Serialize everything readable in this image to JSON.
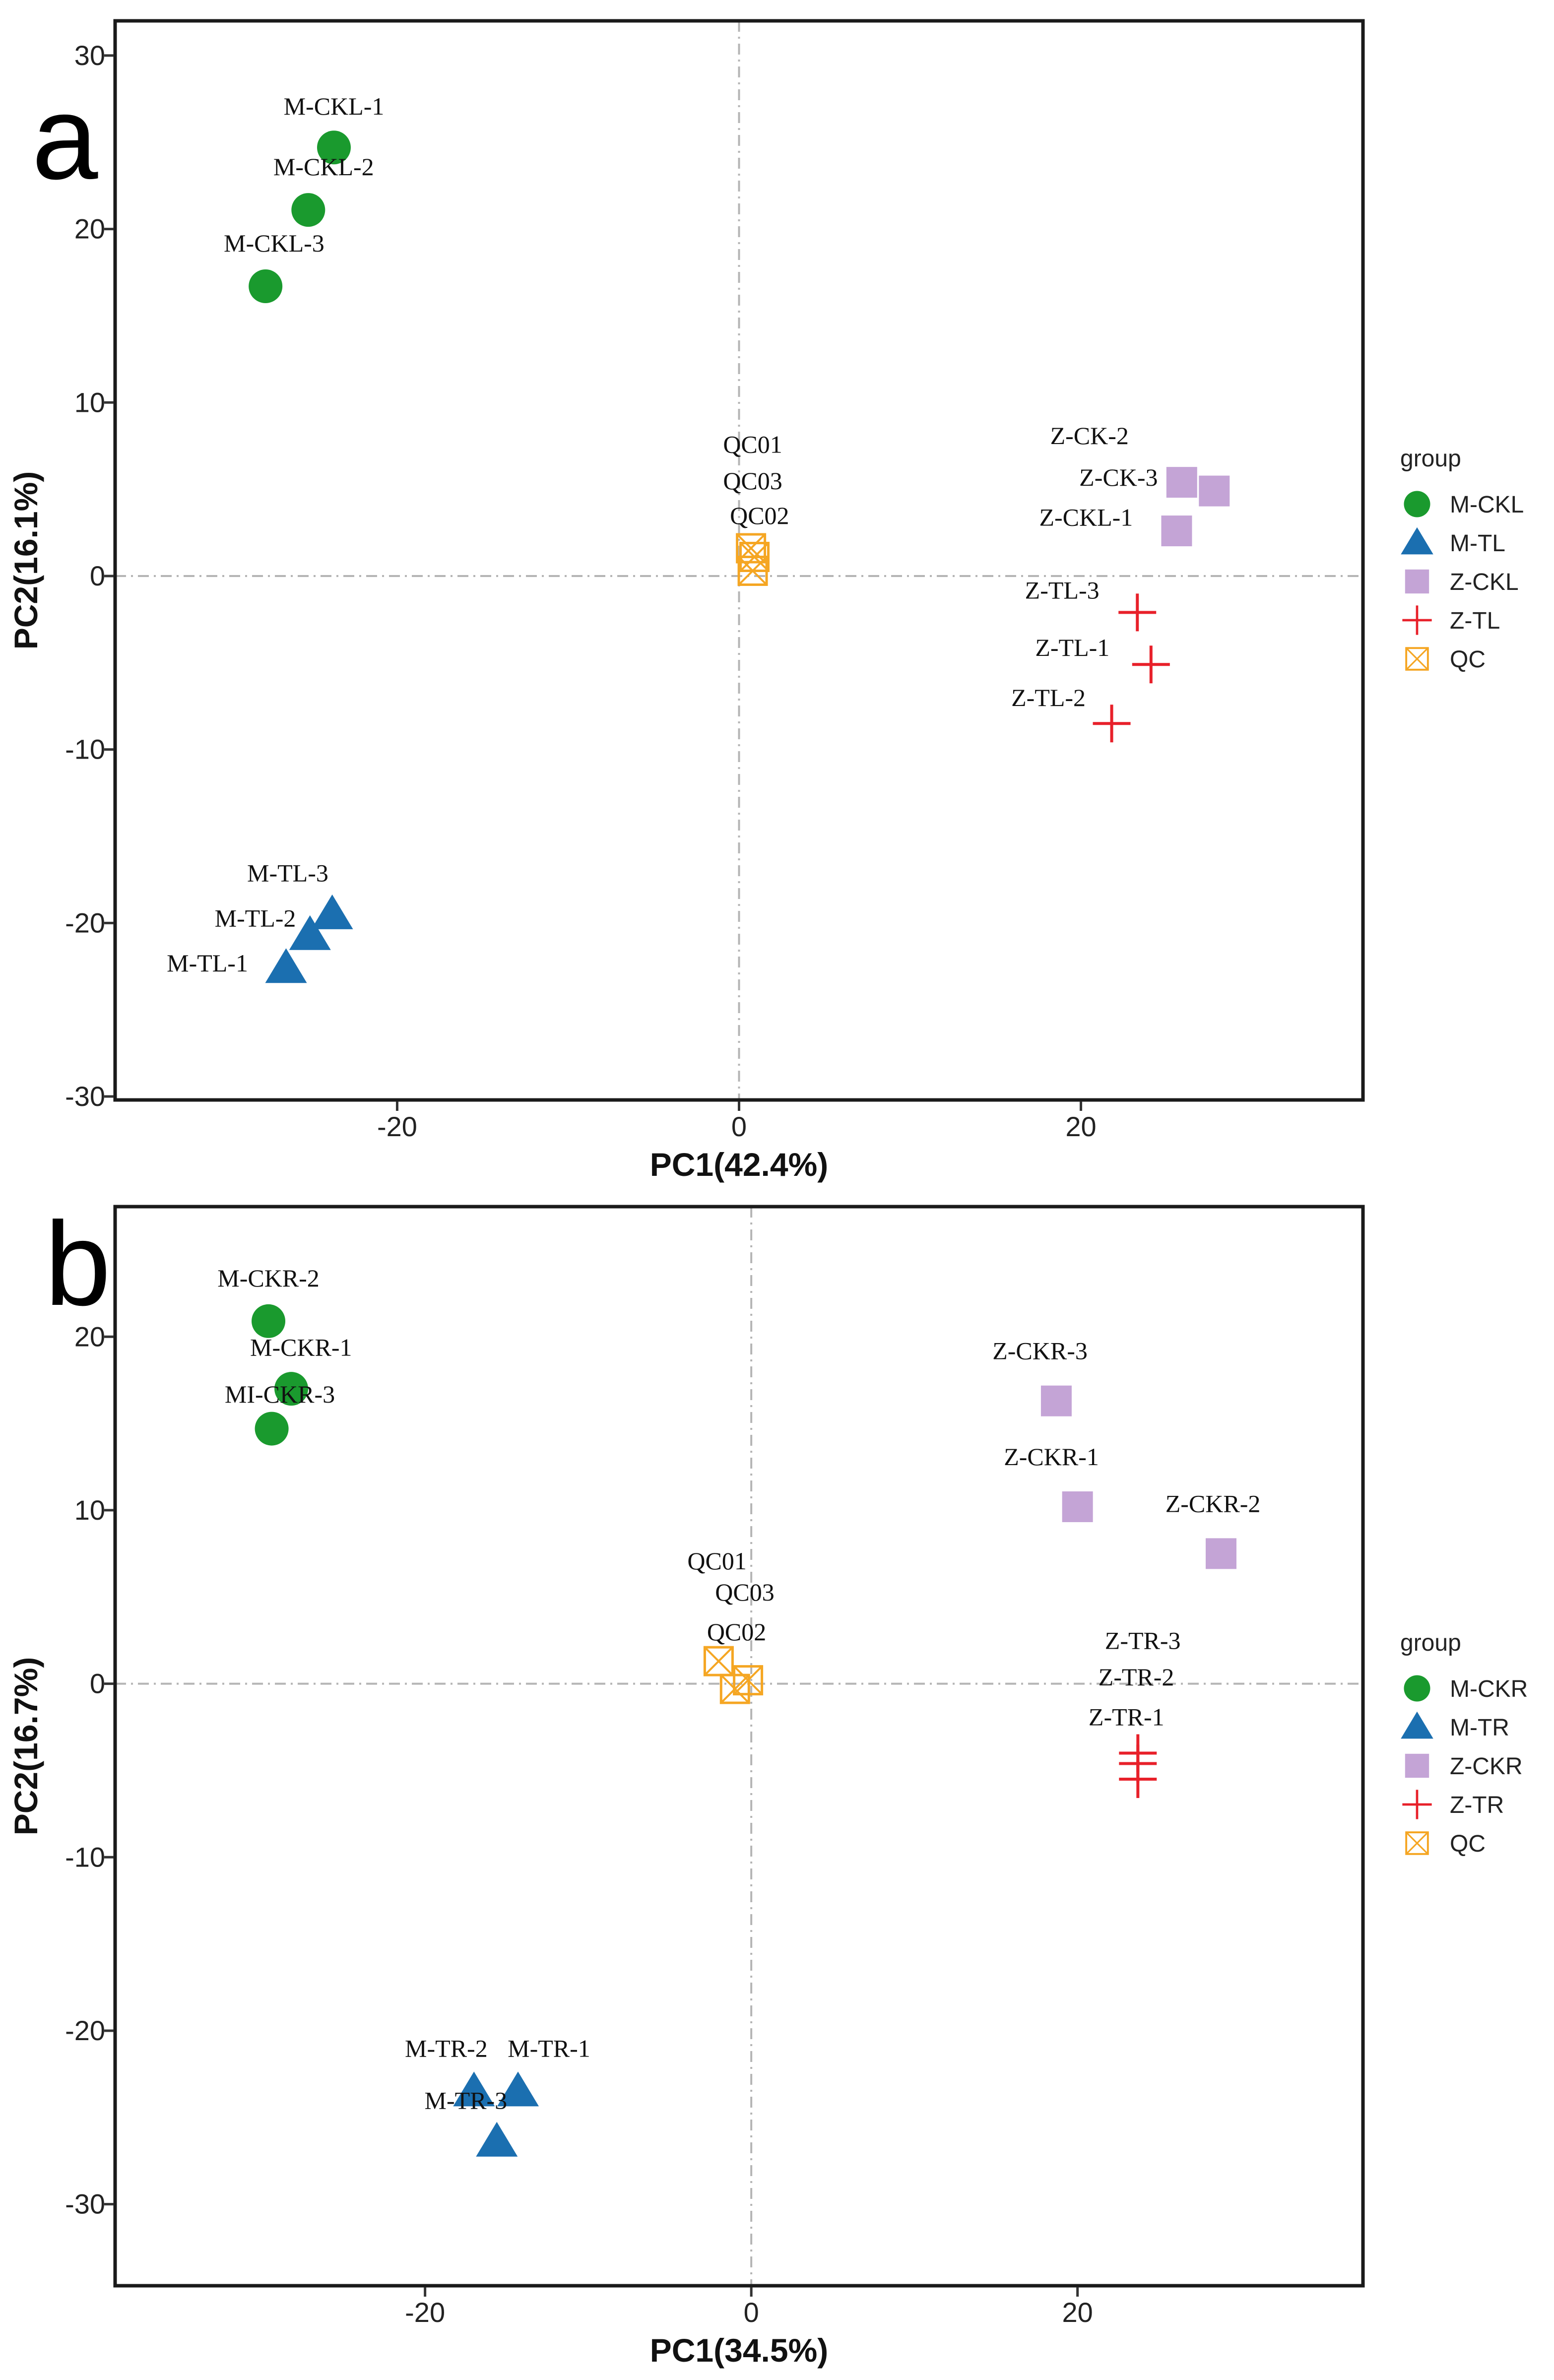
{
  "colors": {
    "M-CKL": "#1a9a2e",
    "M-TL": "#1b6fb0",
    "Z-CKL": "#c4a4d6",
    "Z-TL": "#e8202a",
    "QC": "#f5a623",
    "M-CKR": "#1a9a2e",
    "M-TR": "#1b6fb0",
    "Z-CKR": "#c4a4d6",
    "Z-TR": "#e8202a"
  },
  "chart_data": [
    {
      "type": "scatter",
      "panel_letter": "a",
      "xlabel": "PC1(42.4%)",
      "ylabel": "PC2(16.1%)",
      "xlim": [
        -36.5,
        36.5
      ],
      "ylim": [
        -30.2,
        32.0
      ],
      "xticks": [
        -20,
        0,
        20
      ],
      "yticks": [
        -30,
        -20,
        -10,
        0,
        10,
        20,
        30
      ],
      "ref_lines": {
        "x": 0,
        "y": 0
      },
      "legend_title": "group",
      "legend": [
        {
          "name": "M-CKL",
          "shape": "circle"
        },
        {
          "name": "M-TL",
          "shape": "triangle"
        },
        {
          "name": "Z-CKL",
          "shape": "square"
        },
        {
          "name": "Z-TL",
          "shape": "plus"
        },
        {
          "name": "QC",
          "shape": "boxx"
        }
      ],
      "points": [
        {
          "group": "M-CKL",
          "label": "M-CKL-1",
          "x": -23.7,
          "y": 24.7
        },
        {
          "group": "M-CKL",
          "label": "M-CKL-2",
          "x": -25.2,
          "y": 21.1
        },
        {
          "group": "M-CKL",
          "label": "M-CKL-3",
          "x": -27.7,
          "y": 16.7
        },
        {
          "group": "M-TL",
          "label": "M-TL-3",
          "x": -23.8,
          "y": -19.5
        },
        {
          "group": "M-TL",
          "label": "M-TL-2",
          "x": -25.1,
          "y": -20.7
        },
        {
          "group": "M-TL",
          "label": "M-TL-1",
          "x": -26.5,
          "y": -22.6
        },
        {
          "group": "Z-CKL",
          "label": "Z-CK-2",
          "x": 25.9,
          "y": 5.4
        },
        {
          "group": "Z-CKL",
          "label": "Z-CK-3",
          "x": 27.8,
          "y": 4.9
        },
        {
          "group": "Z-CKL",
          "label": "Z-CKL-1",
          "x": 25.6,
          "y": 2.6
        },
        {
          "group": "Z-TL",
          "label": "Z-TL-3",
          "x": 23.3,
          "y": -2.1
        },
        {
          "group": "Z-TL",
          "label": "Z-TL-1",
          "x": 24.1,
          "y": -5.1
        },
        {
          "group": "Z-TL",
          "label": "Z-TL-2",
          "x": 21.8,
          "y": -8.5
        },
        {
          "group": "QC",
          "label": "QC01",
          "x": 0.7,
          "y": 1.6
        },
        {
          "group": "QC",
          "label": "QC03",
          "x": 0.9,
          "y": 1.1
        },
        {
          "group": "QC",
          "label": "QC02",
          "x": 0.8,
          "y": 0.3
        }
      ],
      "labels": [
        {
          "text": "M-CKL-1",
          "x": -23.7,
          "y": 26.6
        },
        {
          "text": "M-CKL-2",
          "x": -24.3,
          "y": 23.1
        },
        {
          "text": "M-CKL-3",
          "x": -27.2,
          "y": 18.7
        },
        {
          "text": "M-TL-3",
          "x": -26.4,
          "y": -17.6
        },
        {
          "text": "M-TL-2",
          "x": -28.3,
          "y": -20.2
        },
        {
          "text": "M-TL-1",
          "x": -31.1,
          "y": -22.8
        },
        {
          "text": "Z-CK-2",
          "x": 20.5,
          "y": 7.6
        },
        {
          "text": "Z-CK-3",
          "x": 22.2,
          "y": 5.2
        },
        {
          "text": "Z-CKL-1",
          "x": 20.3,
          "y": 2.9
        },
        {
          "text": "Z-TL-3",
          "x": 18.9,
          "y": -1.3
        },
        {
          "text": "Z-TL-1",
          "x": 19.5,
          "y": -4.6
        },
        {
          "text": "Z-TL-2",
          "x": 18.1,
          "y": -7.5
        },
        {
          "text": "QC01",
          "x": 0.8,
          "y": 7.1
        },
        {
          "text": "QC03",
          "x": 0.8,
          "y": 5.0
        },
        {
          "text": "QC02",
          "x": 1.2,
          "y": 3.0
        }
      ]
    },
    {
      "type": "scatter",
      "panel_letter": "b",
      "xlabel": "PC1(34.5%)",
      "ylabel": "PC2(16.7%)",
      "xlim": [
        -39.0,
        37.5
      ],
      "ylim": [
        -34.7,
        27.5
      ],
      "xticks": [
        -20,
        0,
        20
      ],
      "yticks": [
        -30,
        -20,
        -10,
        0,
        10,
        20
      ],
      "ref_lines": {
        "x": 0,
        "y": 0
      },
      "legend_title": "group",
      "legend": [
        {
          "name": "M-CKR",
          "shape": "circle"
        },
        {
          "name": "M-TR",
          "shape": "triangle"
        },
        {
          "name": "Z-CKR",
          "shape": "square"
        },
        {
          "name": "Z-TR",
          "shape": "plus"
        },
        {
          "name": "QC",
          "shape": "boxx"
        }
      ],
      "points": [
        {
          "group": "M-CKR",
          "label": "M-CKR-2",
          "x": -29.6,
          "y": 20.9
        },
        {
          "group": "M-CKR",
          "label": "M-CKR-1",
          "x": -28.2,
          "y": 17.0
        },
        {
          "group": "M-CKR",
          "label": "MI-CKR-3",
          "x": -29.4,
          "y": 14.7
        },
        {
          "group": "M-TR",
          "label": "M-TR-2",
          "x": -17.0,
          "y": -23.5
        },
        {
          "group": "M-TR",
          "label": "M-TR-1",
          "x": -14.3,
          "y": -23.5
        },
        {
          "group": "M-TR",
          "label": "M-TR-3",
          "x": -15.6,
          "y": -26.4
        },
        {
          "group": "Z-CKR",
          "label": "Z-CKR-3",
          "x": 18.7,
          "y": 16.3
        },
        {
          "group": "Z-CKR",
          "label": "Z-CKR-1",
          "x": 20.0,
          "y": 10.2
        },
        {
          "group": "Z-CKR",
          "label": "Z-CKR-2",
          "x": 28.8,
          "y": 7.5
        },
        {
          "group": "Z-TR",
          "label": "Z-TR-3",
          "x": 23.7,
          "y": -4.0
        },
        {
          "group": "Z-TR",
          "label": "Z-TR-2",
          "x": 23.7,
          "y": -4.6
        },
        {
          "group": "Z-TR",
          "label": "Z-TR-1",
          "x": 23.7,
          "y": -5.5
        },
        {
          "group": "QC",
          "label": "QC01",
          "x": -2.0,
          "y": 1.3
        },
        {
          "group": "QC",
          "label": "QC03",
          "x": -0.2,
          "y": 0.2
        },
        {
          "group": "QC",
          "label": "QC02",
          "x": -1.0,
          "y": -0.3
        }
      ],
      "labels": [
        {
          "text": "M-CKR-2",
          "x": -29.6,
          "y": 22.9
        },
        {
          "text": "M-CKR-1",
          "x": -27.6,
          "y": 18.9
        },
        {
          "text": "MI-CKR-3",
          "x": -28.9,
          "y": 16.2
        },
        {
          "text": "M-TR-2",
          "x": -18.7,
          "y": -21.5
        },
        {
          "text": "M-TR-1",
          "x": -12.4,
          "y": -21.5
        },
        {
          "text": "M-TR-3",
          "x": -17.5,
          "y": -24.5
        },
        {
          "text": "Z-CKR-3",
          "x": 17.7,
          "y": 18.7
        },
        {
          "text": "Z-CKR-1",
          "x": 18.4,
          "y": 12.6
        },
        {
          "text": "Z-CKR-2",
          "x": 28.3,
          "y": 9.9
        },
        {
          "text": "Z-TR-3",
          "x": 24.0,
          "y": 2.0
        },
        {
          "text": "Z-TR-2",
          "x": 23.6,
          "y": -0.1
        },
        {
          "text": "Z-TR-1",
          "x": 23.0,
          "y": -2.4
        },
        {
          "text": "QC01",
          "x": -2.1,
          "y": 6.6
        },
        {
          "text": "QC03",
          "x": -0.4,
          "y": 4.8
        },
        {
          "text": "QC02",
          "x": -0.9,
          "y": 2.5
        }
      ]
    }
  ]
}
